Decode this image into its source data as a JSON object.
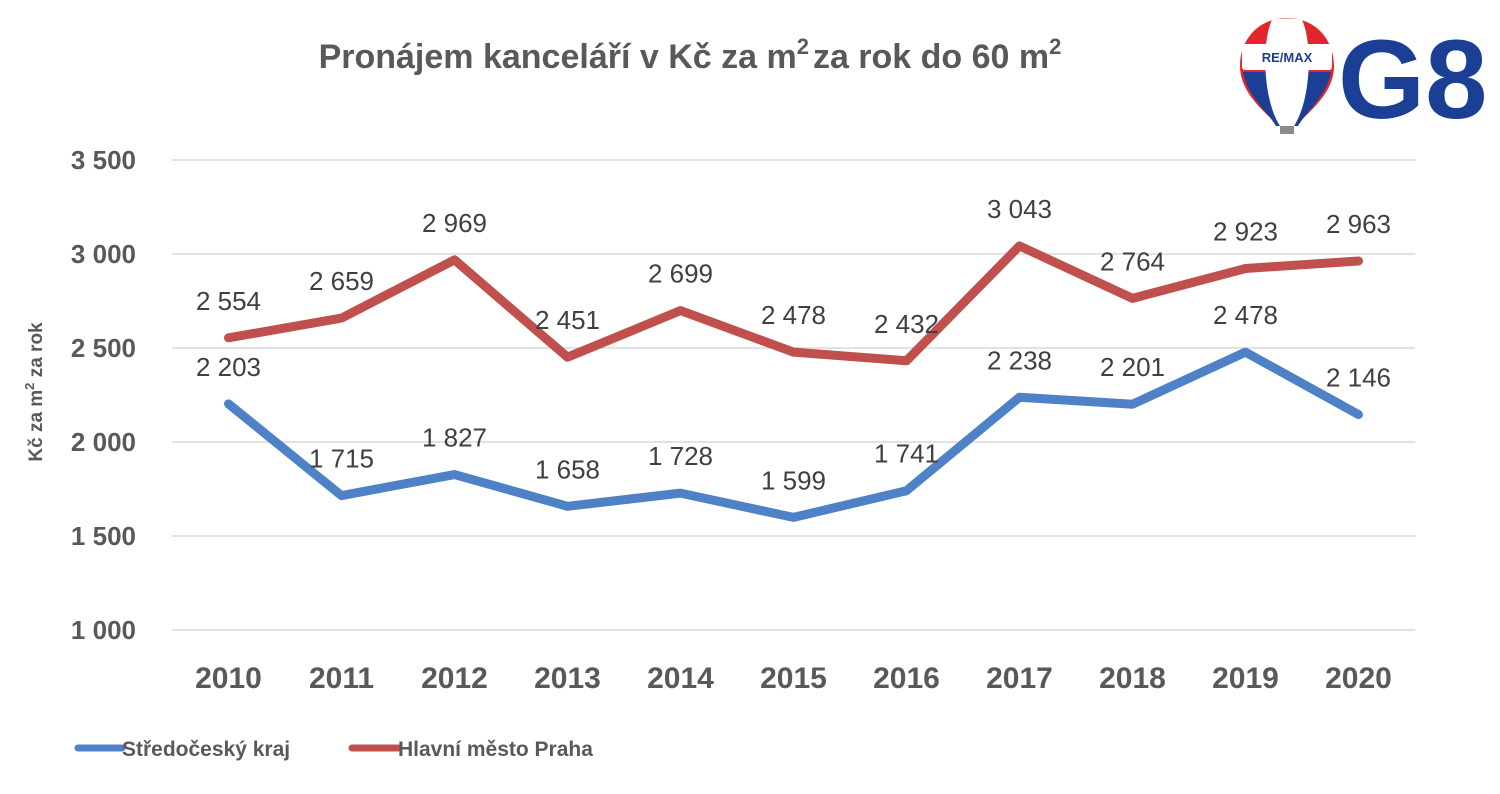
{
  "chart_data": {
    "type": "line",
    "title": "Pronájem kanceláří v Kč za m",
    "title_sup": "2",
    "title_tail": "za rok do 60 m",
    "title_sup2": "2",
    "ylabel": "Kč za m",
    "ylabel_sup": "2",
    "ylabel_tail": " za rok",
    "xlabel": "",
    "categories": [
      "2010",
      "2011",
      "2012",
      "2013",
      "2014",
      "2015",
      "2016",
      "2017",
      "2018",
      "2019",
      "2020"
    ],
    "ylim": [
      1000,
      3500
    ],
    "yticks": [
      1000,
      1500,
      2000,
      2500,
      3000,
      3500
    ],
    "ytick_labels": [
      "1 000",
      "1 500",
      "2 000",
      "2 500",
      "3 000",
      "3 500"
    ],
    "grid": true,
    "legend_position": "bottom-left",
    "series": [
      {
        "name": "Středočeský kraj",
        "color": "#4f81c7",
        "values": [
          2203,
          1715,
          1827,
          1658,
          1728,
          1599,
          1741,
          2238,
          2201,
          2478,
          2146
        ],
        "labels": [
          "2 203",
          "1 715",
          "1 827",
          "1 658",
          "1 728",
          "1 599",
          "1 741",
          "2 238",
          "2 201",
          "2 478",
          "2 146"
        ]
      },
      {
        "name": "Hlavní město Praha",
        "color": "#c0504d",
        "values": [
          2554,
          2659,
          2969,
          2451,
          2699,
          2478,
          2432,
          3043,
          2764,
          2923,
          2963
        ],
        "labels": [
          "2 554",
          "2 659",
          "2 969",
          "2 451",
          "2 699",
          "2 478",
          "2 432",
          "3 043",
          "2 764",
          "2 923",
          "2 963"
        ]
      }
    ]
  },
  "logos": {
    "remax_text": "RE/MAX",
    "g8_text": "G8",
    "remax_colors": [
      "#e3262e",
      "#ffffff",
      "#1b3f95"
    ],
    "g8_color": "#1b3f95"
  }
}
